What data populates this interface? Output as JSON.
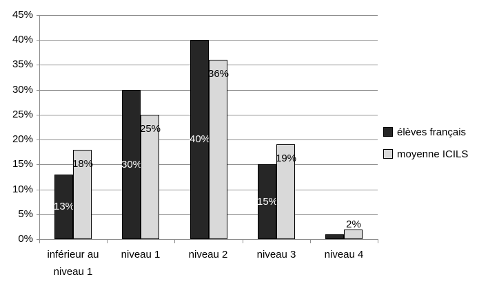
{
  "chart_data": {
    "type": "bar",
    "title": "",
    "xlabel": "",
    "ylabel": "",
    "categories": [
      "inférieur au niveau 1",
      "niveau 1",
      "niveau 2",
      "niveau 3",
      "niveau 4"
    ],
    "series": [
      {
        "name": "élèves français",
        "color": "#262626",
        "values": [
          13,
          30,
          40,
          15,
          1
        ],
        "data_labels": [
          "13%",
          "30%",
          "40%",
          "15%",
          ""
        ],
        "label_color": "#ffffff",
        "label_position": "center"
      },
      {
        "name": "moyenne ICILS",
        "color": "#d9d9d9",
        "values": [
          18,
          25,
          36,
          19,
          2
        ],
        "data_labels": [
          "18%",
          "25%",
          "36%",
          "19%",
          "2%"
        ],
        "label_color": "#000000",
        "label_position": "inside-end"
      }
    ],
    "ylim": [
      0,
      45
    ],
    "ytick_step": 5,
    "ytick_labels": [
      "0%",
      "5%",
      "10%",
      "15%",
      "20%",
      "25%",
      "30%",
      "35%",
      "40%",
      "45%"
    ],
    "grid": true,
    "legend_position": "right",
    "colors": {
      "axis": "#8e8e8e",
      "gridline": "#8e8e8e",
      "bar_border": "#000000",
      "text": "#000000"
    }
  }
}
